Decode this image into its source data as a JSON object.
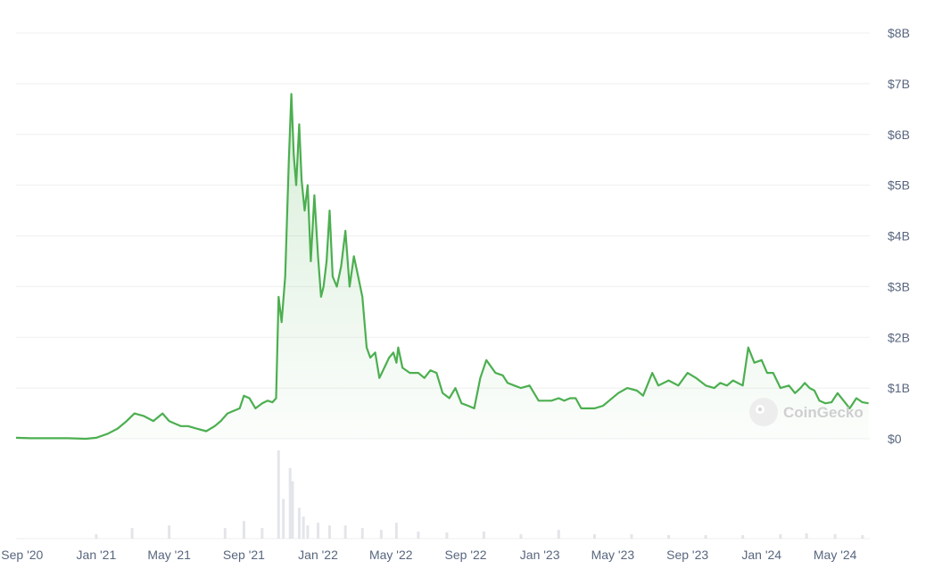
{
  "chart_data": {
    "type": "area",
    "watermark": "CoinGecko",
    "y_ticks": [
      "$0",
      "$1B",
      "$2B",
      "$3B",
      "$4B",
      "$5B",
      "$6B",
      "$7B",
      "$8B"
    ],
    "x_ticks": [
      "Sep '20",
      "Jan '21",
      "May '21",
      "Sep '21",
      "Jan '22",
      "May '22",
      "Sep '22",
      "Jan '23",
      "May '23",
      "Sep '23",
      "Jan '24",
      "May '24"
    ],
    "x_tick_dates": [
      "2020-09-01",
      "2021-01-01",
      "2021-05-01",
      "2021-09-01",
      "2022-01-01",
      "2022-05-01",
      "2022-09-01",
      "2023-01-01",
      "2023-05-01",
      "2023-09-01",
      "2024-01-01",
      "2024-05-01"
    ],
    "ylim": [
      0,
      8
    ],
    "y_unit": "$B",
    "line_color": "#4caf50",
    "volume_color": "#e3e5ea",
    "series": [
      {
        "x": [
          "2020-08-22",
          "2020-09-15",
          "2020-10-15",
          "2020-11-15",
          "2020-12-15",
          "2021-01-01",
          "2021-01-20",
          "2021-02-05",
          "2021-02-20",
          "2021-03-05",
          "2021-03-20",
          "2021-04-05",
          "2021-04-20",
          "2021-05-01",
          "2021-05-10",
          "2021-05-20",
          "2021-06-01",
          "2021-06-15",
          "2021-07-01",
          "2021-07-15",
          "2021-07-25",
          "2021-08-05",
          "2021-08-15",
          "2021-08-25",
          "2021-09-01",
          "2021-09-10",
          "2021-09-20",
          "2021-10-01",
          "2021-10-10",
          "2021-10-18",
          "2021-10-24",
          "2021-10-28",
          "2021-11-02",
          "2021-11-08",
          "2021-11-14",
          "2021-11-18",
          "2021-11-22",
          "2021-11-26",
          "2021-12-01",
          "2021-12-05",
          "2021-12-10",
          "2021-12-15",
          "2021-12-20",
          "2021-12-26",
          "2022-01-01",
          "2022-01-06",
          "2022-01-10",
          "2022-01-15",
          "2022-01-20",
          "2022-01-25",
          "2022-02-01",
          "2022-02-08",
          "2022-02-15",
          "2022-02-22",
          "2022-03-01",
          "2022-03-08",
          "2022-03-15",
          "2022-03-22",
          "2022-03-28",
          "2022-04-05",
          "2022-04-12",
          "2022-04-20",
          "2022-04-28",
          "2022-05-05",
          "2022-05-10",
          "2022-05-13",
          "2022-05-20",
          "2022-06-01",
          "2022-06-10",
          "2022-06-15",
          "2022-06-25",
          "2022-07-05",
          "2022-07-15",
          "2022-07-25",
          "2022-08-05",
          "2022-08-15",
          "2022-08-25",
          "2022-09-05",
          "2022-09-15",
          "2022-09-25",
          "2022-10-05",
          "2022-10-20",
          "2022-11-01",
          "2022-11-09",
          "2022-11-20",
          "2022-12-01",
          "2022-12-15",
          "2022-12-30",
          "2023-01-10",
          "2023-01-20",
          "2023-02-01",
          "2023-02-10",
          "2023-02-20",
          "2023-03-01",
          "2023-03-10",
          "2023-03-20",
          "2023-04-01",
          "2023-04-15",
          "2023-04-25",
          "2023-05-10",
          "2023-05-25",
          "2023-06-10",
          "2023-06-20",
          "2023-07-05",
          "2023-07-15",
          "2023-08-01",
          "2023-08-17",
          "2023-09-01",
          "2023-09-15",
          "2023-10-01",
          "2023-10-15",
          "2023-10-25",
          "2023-11-05",
          "2023-11-15",
          "2023-12-01",
          "2023-12-10",
          "2023-12-20",
          "2024-01-01",
          "2024-01-10",
          "2024-01-20",
          "2024-02-01",
          "2024-02-15",
          "2024-02-25",
          "2024-03-05",
          "2024-03-12",
          "2024-03-20",
          "2024-03-28",
          "2024-04-05",
          "2024-04-15",
          "2024-04-25",
          "2024-05-05",
          "2024-05-15",
          "2024-05-25",
          "2024-06-05",
          "2024-06-15",
          "2024-06-25"
        ],
        "values": [
          0.02,
          0.01,
          0.01,
          0.01,
          0.0,
          0.02,
          0.1,
          0.2,
          0.35,
          0.5,
          0.45,
          0.35,
          0.5,
          0.35,
          0.3,
          0.25,
          0.25,
          0.2,
          0.15,
          0.25,
          0.35,
          0.5,
          0.55,
          0.6,
          0.85,
          0.8,
          0.6,
          0.7,
          0.75,
          0.72,
          0.8,
          2.8,
          2.3,
          3.2,
          5.5,
          6.8,
          5.6,
          5.0,
          6.2,
          5.1,
          4.5,
          5.0,
          3.5,
          4.8,
          3.6,
          2.8,
          3.0,
          3.5,
          4.5,
          3.2,
          3.0,
          3.4,
          4.1,
          3.0,
          3.6,
          3.2,
          2.8,
          1.8,
          1.6,
          1.7,
          1.2,
          1.4,
          1.6,
          1.7,
          1.5,
          1.8,
          1.4,
          1.3,
          1.3,
          1.3,
          1.2,
          1.35,
          1.3,
          0.9,
          0.8,
          1.0,
          0.7,
          0.65,
          0.6,
          1.2,
          1.55,
          1.3,
          1.25,
          1.1,
          1.05,
          1.0,
          1.05,
          0.75,
          0.75,
          0.75,
          0.8,
          0.75,
          0.8,
          0.8,
          0.6,
          0.6,
          0.6,
          0.65,
          0.75,
          0.9,
          1.0,
          0.95,
          0.85,
          1.3,
          1.05,
          1.15,
          1.05,
          1.3,
          1.2,
          1.05,
          1.0,
          1.1,
          1.05,
          1.15,
          1.05,
          1.8,
          1.5,
          1.55,
          1.3,
          1.3,
          1.0,
          1.05,
          0.9,
          1.0,
          1.1,
          1.0,
          0.95,
          0.75,
          0.7,
          0.72,
          0.9,
          0.75,
          0.6,
          0.8,
          0.72,
          0.7
        ]
      }
    ],
    "volume": {
      "x": [
        "2020-09-01",
        "2021-01-01",
        "2021-03-01",
        "2021-05-01",
        "2021-08-01",
        "2021-09-01",
        "2021-10-01",
        "2021-10-28",
        "2021-11-05",
        "2021-11-16",
        "2021-11-20",
        "2021-12-01",
        "2021-12-08",
        "2021-12-15",
        "2022-01-01",
        "2022-01-20",
        "2022-02-15",
        "2022-03-15",
        "2022-04-15",
        "2022-05-10",
        "2022-06-15",
        "2022-08-01",
        "2022-10-01",
        "2022-12-01",
        "2023-02-01",
        "2023-04-01",
        "2023-06-01",
        "2023-08-01",
        "2023-10-01",
        "2023-12-01",
        "2024-02-01",
        "2024-03-15",
        "2024-05-01",
        "2024-06-15"
      ],
      "values": [
        0.0,
        0.05,
        0.12,
        0.15,
        0.12,
        0.2,
        0.12,
        1.0,
        0.45,
        0.8,
        0.65,
        0.35,
        0.25,
        0.15,
        0.18,
        0.15,
        0.15,
        0.12,
        0.1,
        0.18,
        0.08,
        0.07,
        0.08,
        0.05,
        0.1,
        0.05,
        0.05,
        0.04,
        0.04,
        0.04,
        0.05,
        0.06,
        0.05,
        0.04
      ]
    }
  }
}
